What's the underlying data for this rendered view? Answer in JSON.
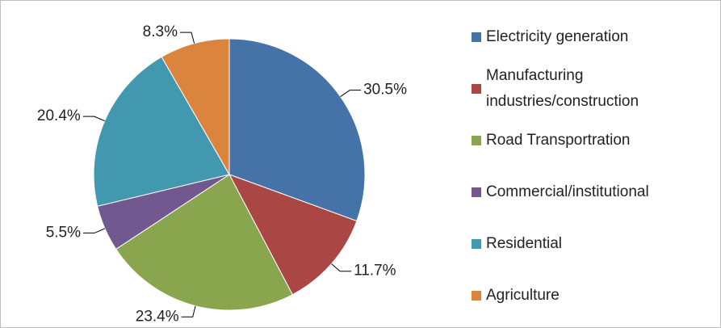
{
  "chart_data": {
    "type": "pie",
    "categories": [
      "Electricity generation",
      "Manufacturing industries/construction",
      "Road Transportration",
      "Commercial/institutional",
      "Residential",
      "Agriculture"
    ],
    "values": [
      30.5,
      11.7,
      23.4,
      5.5,
      20.4,
      8.3
    ],
    "value_labels": [
      "30.5%",
      "11.7%",
      "23.4%",
      "5.5%",
      "20.4%",
      "8.3%"
    ],
    "colors": [
      "#4572a7",
      "#aa4643",
      "#89a54e",
      "#71588f",
      "#4198af",
      "#db843d"
    ],
    "legend": "right"
  }
}
